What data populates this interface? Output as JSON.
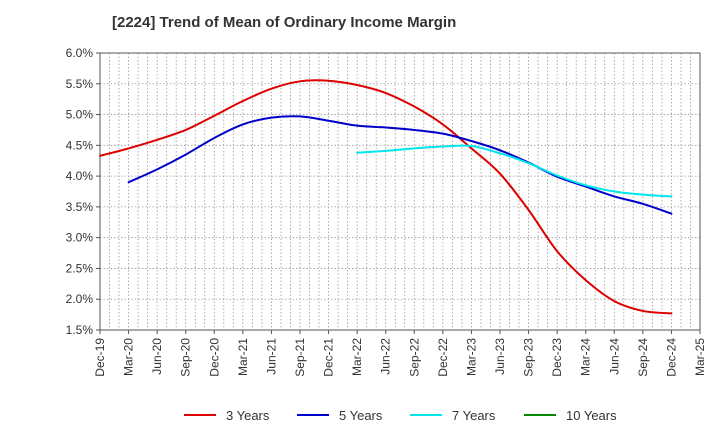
{
  "chart_data": {
    "type": "line",
    "title": "[2224]  Trend of Mean of Ordinary Income Margin",
    "xlabel": "",
    "ylabel": "",
    "x_ticks": [
      "Dec-19",
      "Mar-20",
      "Jun-20",
      "Sep-20",
      "Dec-20",
      "Mar-21",
      "Jun-21",
      "Sep-21",
      "Dec-21",
      "Mar-22",
      "Jun-22",
      "Sep-22",
      "Dec-22",
      "Mar-23",
      "Jun-23",
      "Sep-23",
      "Dec-23",
      "Mar-24",
      "Jun-24",
      "Sep-24",
      "Dec-24",
      "Mar-25"
    ],
    "y_ticks": [
      "1.5%",
      "2.0%",
      "2.5%",
      "3.0%",
      "3.5%",
      "4.0%",
      "4.5%",
      "5.0%",
      "5.5%",
      "6.0%"
    ],
    "ylim": [
      1.5,
      6.0
    ],
    "grid": true,
    "legend_position": "bottom",
    "series": [
      {
        "name": "3 Years",
        "color": "#dd0000",
        "x": [
          "Dec-19",
          "Mar-20",
          "Jun-20",
          "Sep-20",
          "Dec-20",
          "Mar-21",
          "Jun-21",
          "Sep-21",
          "Dec-21",
          "Mar-22",
          "Jun-22",
          "Sep-22",
          "Dec-22",
          "Mar-23",
          "Jun-23",
          "Sep-23",
          "Dec-23",
          "Mar-24",
          "Jun-24",
          "Sep-24",
          "Dec-24"
        ],
        "values": [
          4.33,
          4.45,
          4.59,
          4.75,
          4.98,
          5.22,
          5.42,
          5.54,
          5.55,
          5.48,
          5.35,
          5.13,
          4.84,
          4.45,
          4.04,
          3.45,
          2.78,
          2.31,
          1.97,
          1.81,
          1.77
        ]
      },
      {
        "name": "5 Years",
        "color": "#0000cc",
        "x": [
          "Mar-20",
          "Jun-20",
          "Sep-20",
          "Dec-20",
          "Mar-21",
          "Jun-21",
          "Sep-21",
          "Dec-21",
          "Mar-22",
          "Jun-22",
          "Sep-22",
          "Dec-22",
          "Mar-23",
          "Jun-23",
          "Sep-23",
          "Dec-23",
          "Mar-24",
          "Jun-24",
          "Sep-24",
          "Dec-24"
        ],
        "values": [
          3.9,
          4.11,
          4.35,
          4.62,
          4.84,
          4.95,
          4.97,
          4.9,
          4.82,
          4.79,
          4.75,
          4.69,
          4.57,
          4.42,
          4.22,
          3.99,
          3.83,
          3.67,
          3.55,
          3.39
        ]
      },
      {
        "name": "7 Years",
        "color": "#00e5ee",
        "x": [
          "Mar-22",
          "Jun-22",
          "Sep-22",
          "Dec-22",
          "Mar-23",
          "Jun-23",
          "Sep-23",
          "Dec-23",
          "Mar-24",
          "Jun-24",
          "Sep-24",
          "Dec-24"
        ],
        "values": [
          4.38,
          4.41,
          4.45,
          4.48,
          4.49,
          4.37,
          4.21,
          4.01,
          3.85,
          3.75,
          3.7,
          3.67
        ]
      },
      {
        "name": "10 Years",
        "color": "#008800",
        "x": [],
        "values": []
      }
    ]
  }
}
